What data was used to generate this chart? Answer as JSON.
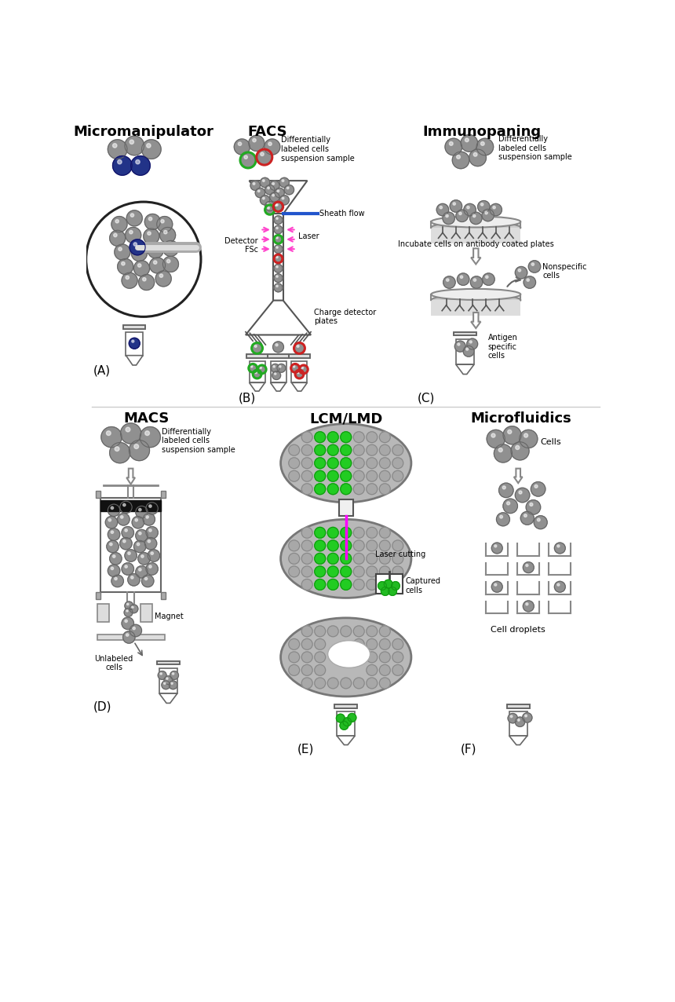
{
  "background_color": "#ffffff",
  "panel_titles": {
    "A": "Micromanipulator",
    "B": "FACS",
    "C": "Immunopaning",
    "D": "MACS",
    "E": "LCM/LMD",
    "F": "Microfluidics"
  },
  "panel_labels": [
    "(A)",
    "(B)",
    "(C)",
    "(D)",
    "(E)",
    "(F)"
  ],
  "facs_label": "Differentially\nlabeled cells\nsuspension sample",
  "immunopaning_label": "Differentially\nlabeled cells\nsuspension sample",
  "macs_label": "Differentially\nlabeled cells\nsuspension sample",
  "cells_label": "Cells",
  "sheath_flow": "Sheath flow",
  "laser_label": "Laser",
  "detector_label": "Detector\nFSc",
  "charge_label": "Charge detector\nplates",
  "incubate_label": "Incubate cells on antibody coated plates",
  "nonspecific_label": "Nonspecific\ncells",
  "antigen_label": "Antigen\nspecific\ncells",
  "magnet_label": "Magnet",
  "unlabeled_label": "Unlabeled\ncells",
  "laser_cutting_label": "Laser cutting",
  "captured_label": "Captured\ncells",
  "cell_droplets_label": "Cell droplets"
}
